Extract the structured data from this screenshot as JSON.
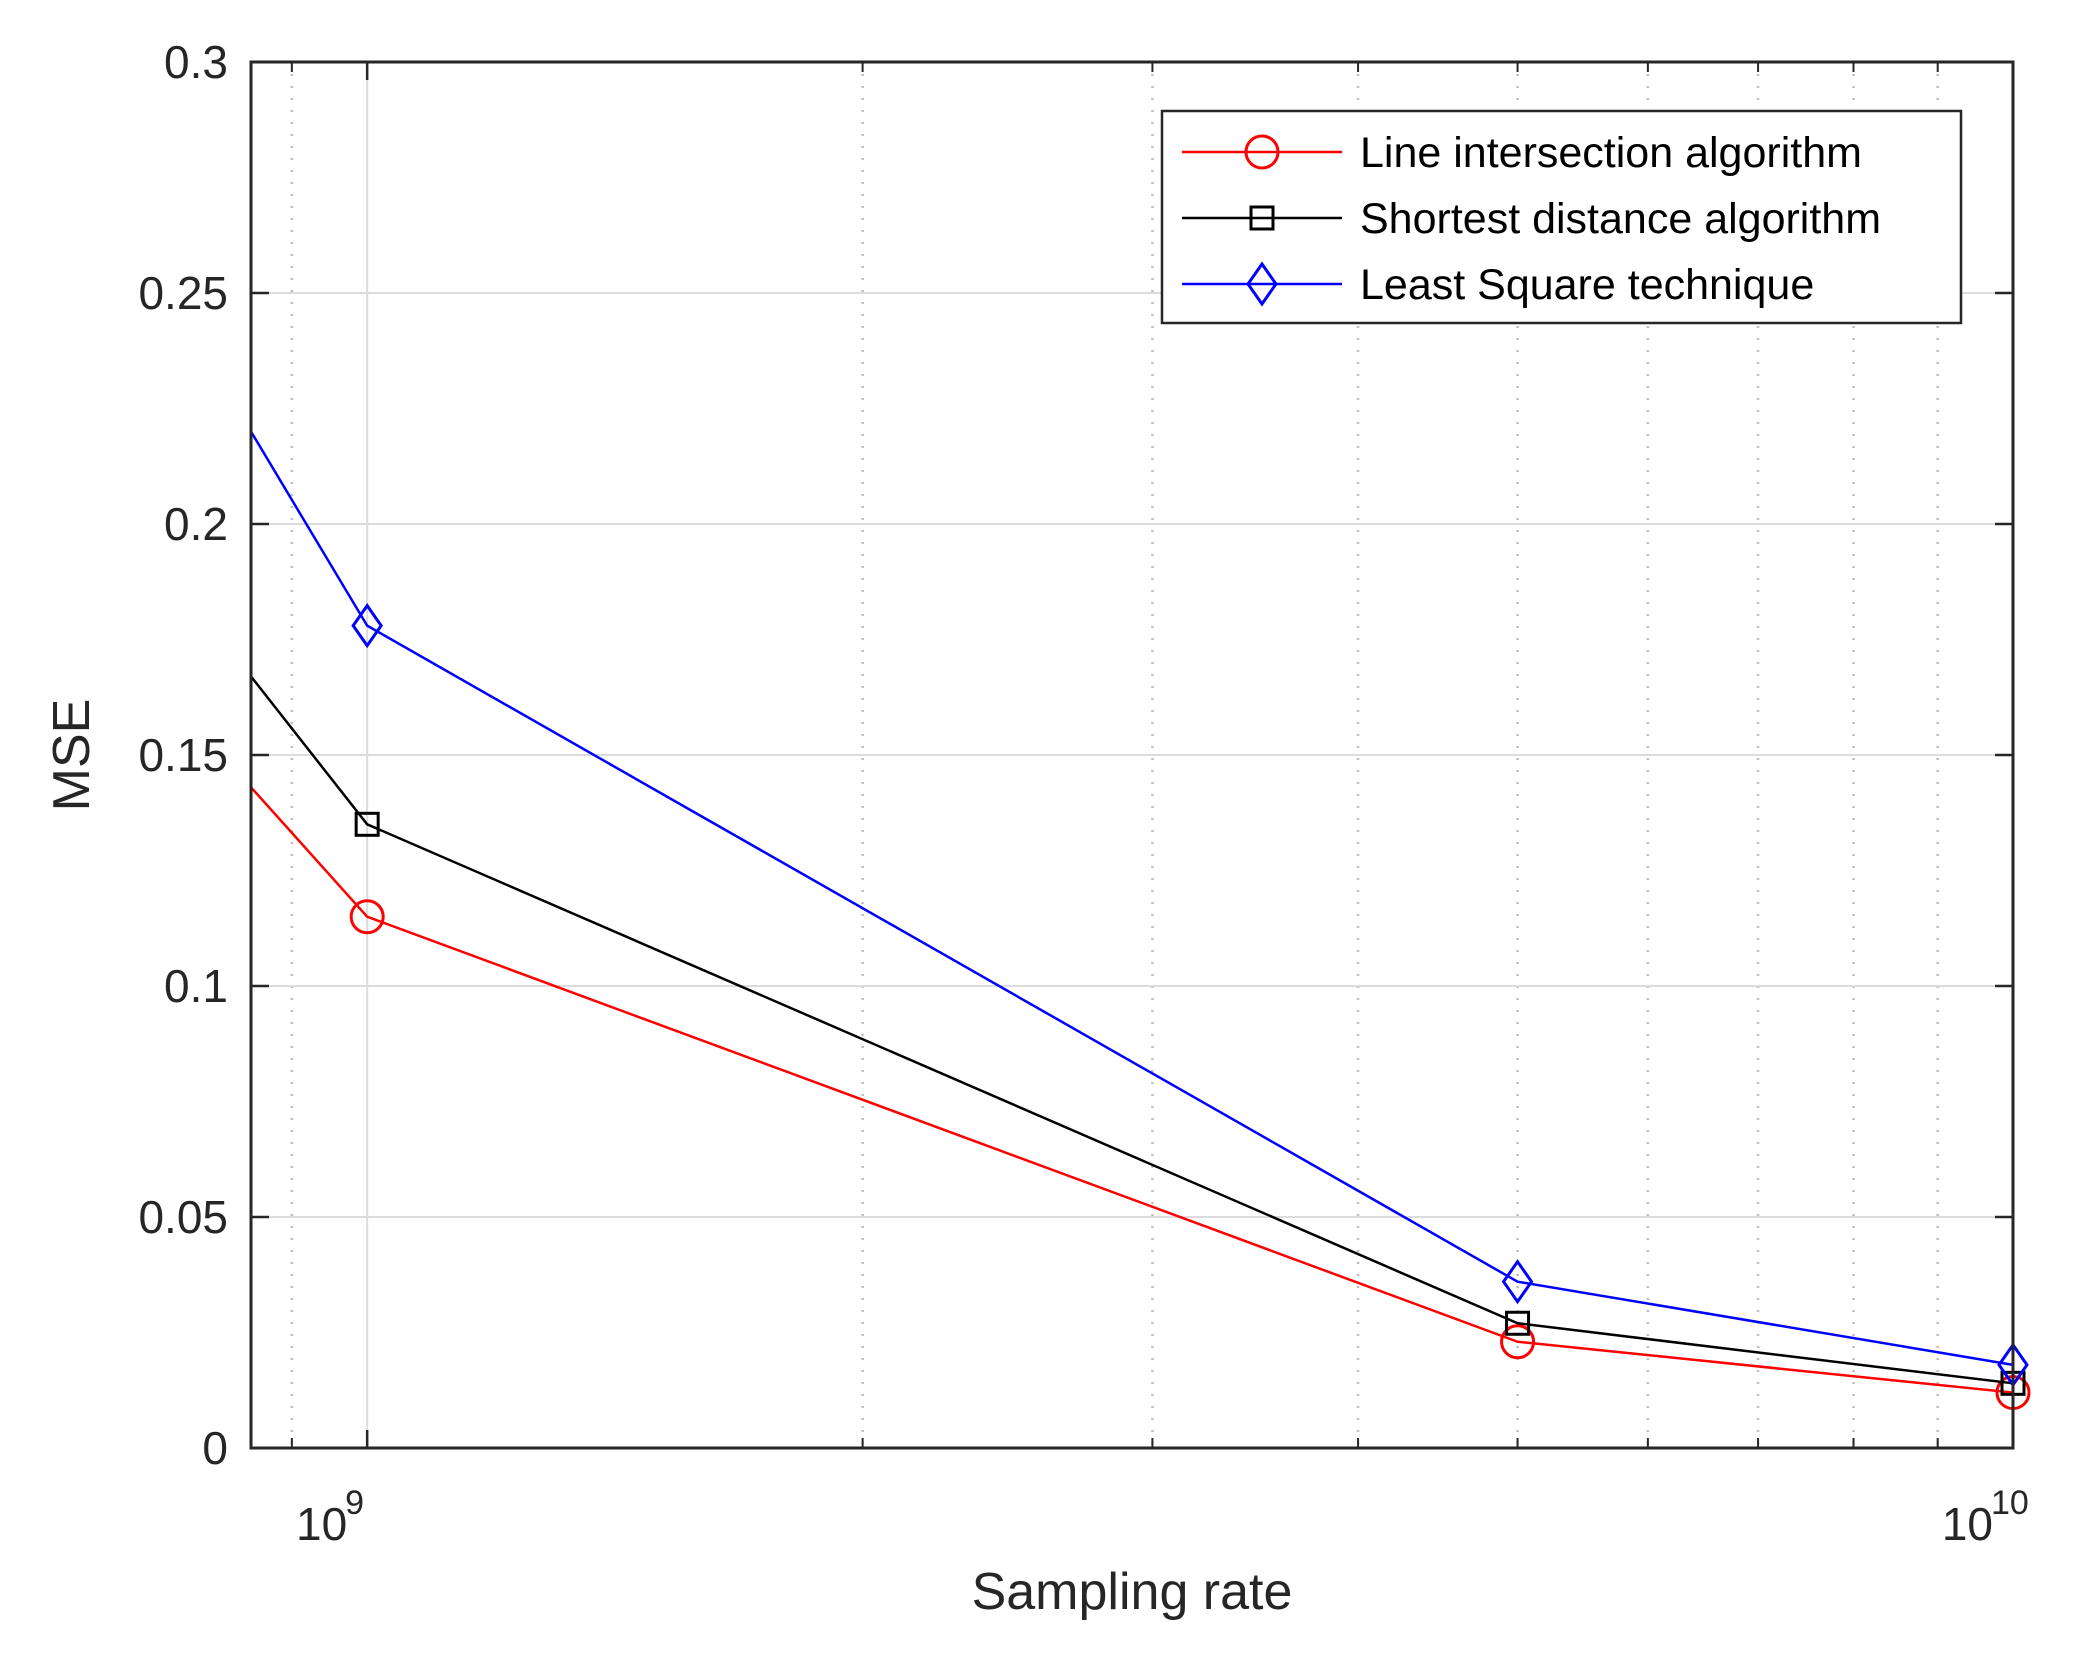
{
  "chart_data": {
    "type": "line",
    "xscale": "log",
    "x": [
      1000000000,
      5000000000,
      10000000000
    ],
    "xlim": [
      850000000,
      10000000000
    ],
    "ylim": [
      0,
      0.3
    ],
    "xlabel": "Sampling rate",
    "ylabel": "MSE",
    "grid": true,
    "legend_position": "top-right",
    "x_tick_labels": [
      {
        "base": "10",
        "exp": "9",
        "value": 1000000000
      },
      {
        "base": "10",
        "exp": "10",
        "value": 10000000000
      }
    ],
    "y_ticks": [
      0,
      0.05,
      0.1,
      0.15,
      0.2,
      0.25,
      0.3
    ],
    "y_tick_labels": [
      "0",
      "0.05",
      "0.1",
      "0.15",
      "0.2",
      "0.25",
      "0.3"
    ],
    "series": [
      {
        "name": "Line intersection algorithm",
        "color": "#ff0000",
        "marker": "circle",
        "start_value": 0.143,
        "values": [
          0.115,
          0.023,
          0.012
        ]
      },
      {
        "name": "Shortest distance algorithm",
        "color": "#000000",
        "marker": "square",
        "start_value": 0.167,
        "values": [
          0.135,
          0.027,
          0.014
        ]
      },
      {
        "name": "Least Square technique",
        "color": "#0000ff",
        "marker": "diamond",
        "start_value": 0.22,
        "values": [
          0.178,
          0.036,
          0.018
        ]
      }
    ]
  }
}
